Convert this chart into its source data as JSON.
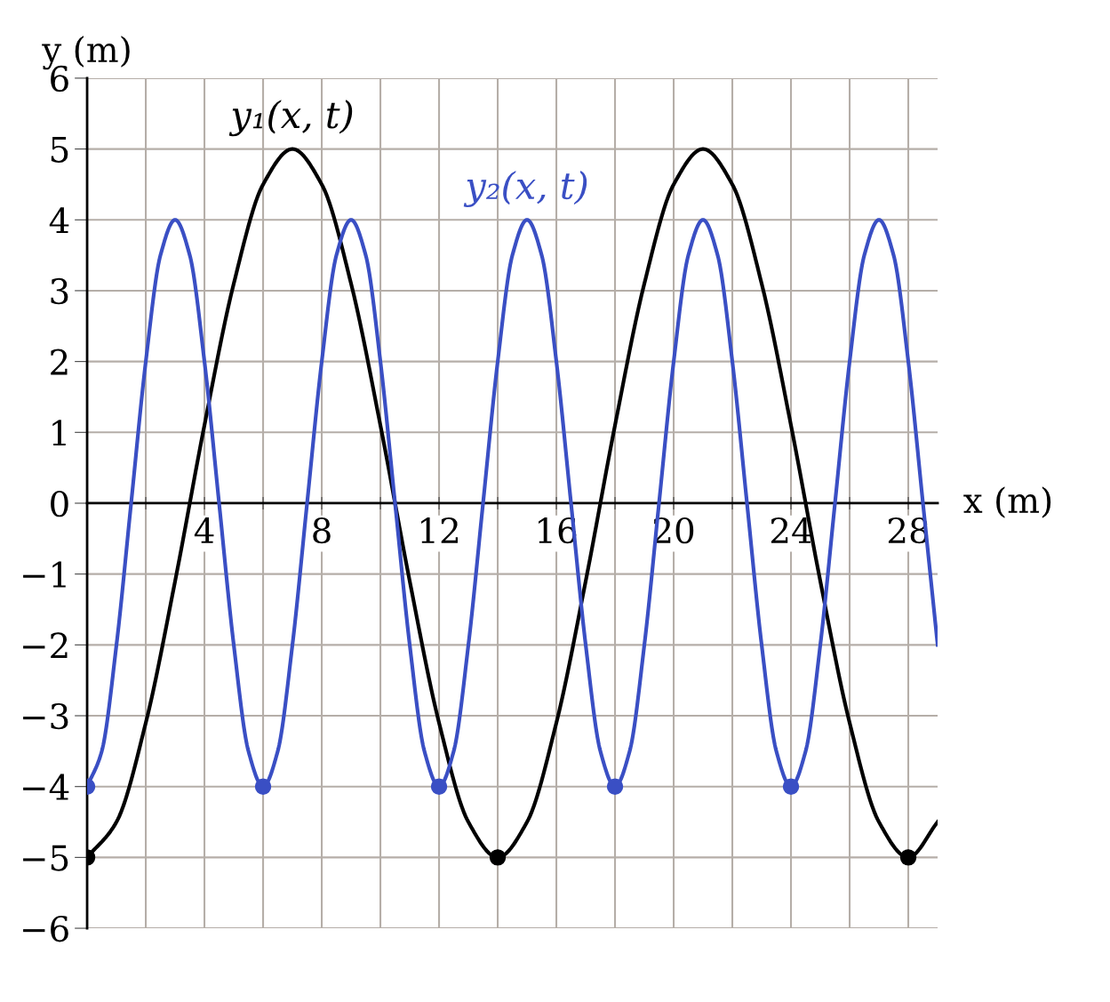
{
  "chart_data": {
    "type": "line",
    "xlabel": "x (m)",
    "ylabel": "y (m)",
    "xlim": [
      0,
      29
    ],
    "ylim": [
      -6,
      6
    ],
    "xticks": [
      {
        "value": 2,
        "label": null
      },
      4,
      {
        "value": 6,
        "label": null
      },
      8,
      {
        "value": 10,
        "label": null
      },
      12,
      {
        "value": 14,
        "label": null
      },
      16,
      {
        "value": 18,
        "label": null
      },
      20,
      {
        "value": 22,
        "label": null
      },
      24,
      {
        "value": 26,
        "label": null
      },
      28
    ],
    "yticks": [
      -6,
      -5,
      -4,
      -3,
      -2,
      -1,
      0,
      1,
      2,
      3,
      4,
      5,
      6
    ],
    "grid": true,
    "line_style": "solid",
    "series": [
      {
        "name": "y₁(x, t)",
        "color": "#000000",
        "x": [
          0,
          1,
          2,
          3,
          4,
          5,
          6,
          7,
          8,
          9,
          10,
          11,
          12,
          13,
          14,
          15,
          16,
          17,
          18,
          19,
          20,
          21,
          22,
          23,
          24,
          25,
          26,
          27,
          28,
          29
        ],
        "values": [
          -5,
          -4.5,
          -3.1,
          -1.1,
          1.1,
          3.1,
          4.5,
          5,
          4.5,
          3.1,
          1.1,
          -1.1,
          -3.1,
          -4.5,
          -5,
          -4.5,
          -3.1,
          -1.1,
          1.1,
          3.1,
          4.5,
          5,
          4.5,
          3.1,
          1.1,
          -1.1,
          -3.1,
          -4.5,
          -5,
          -4.5
        ]
      },
      {
        "name": "y₂(x, t)",
        "color": "#3a4fc4",
        "x": [
          0,
          0.5,
          1,
          1.5,
          2,
          2.5,
          3,
          3.5,
          4,
          4.5,
          5,
          5.5,
          6,
          6.5,
          7,
          7.5,
          8,
          8.5,
          9,
          9.5,
          10,
          10.5,
          11,
          11.5,
          12,
          12.5,
          13,
          13.5,
          14,
          14.5,
          15,
          15.5,
          16,
          16.5,
          17,
          17.5,
          18,
          18.5,
          19,
          19.5,
          20,
          20.5,
          21,
          21.5,
          22,
          22.5,
          23,
          23.5,
          24,
          24.5,
          25,
          25.5,
          26,
          26.5,
          27,
          27.5,
          28,
          28.5,
          29
        ],
        "values": [
          -4,
          -3.5,
          -2,
          0,
          2,
          3.5,
          4,
          3.5,
          2,
          0,
          -2,
          -3.5,
          -4,
          -3.5,
          -2,
          0,
          2,
          3.5,
          4,
          3.5,
          2,
          0,
          -2,
          -3.5,
          -4,
          -3.5,
          -2,
          0,
          2,
          3.5,
          4,
          3.5,
          2,
          0,
          -2,
          -3.5,
          -4,
          -3.5,
          -2,
          0,
          2,
          3.5,
          4,
          3.5,
          2,
          0,
          -2,
          -3.5,
          -4,
          -3.5,
          -2,
          0,
          2,
          3.5,
          4,
          3.5,
          2,
          0,
          -2
        ]
      },
      {
        "type": "scatter",
        "marker": "circle",
        "color": "#000000",
        "x": [
          0,
          14,
          28
        ],
        "values": [
          -5,
          -5,
          -5
        ]
      },
      {
        "type": "scatter",
        "marker": "circle",
        "color": "#3a4fc4",
        "x": [
          0,
          6,
          12,
          18,
          24
        ],
        "values": [
          -4,
          -4,
          -4,
          -4,
          -4
        ]
      }
    ]
  }
}
